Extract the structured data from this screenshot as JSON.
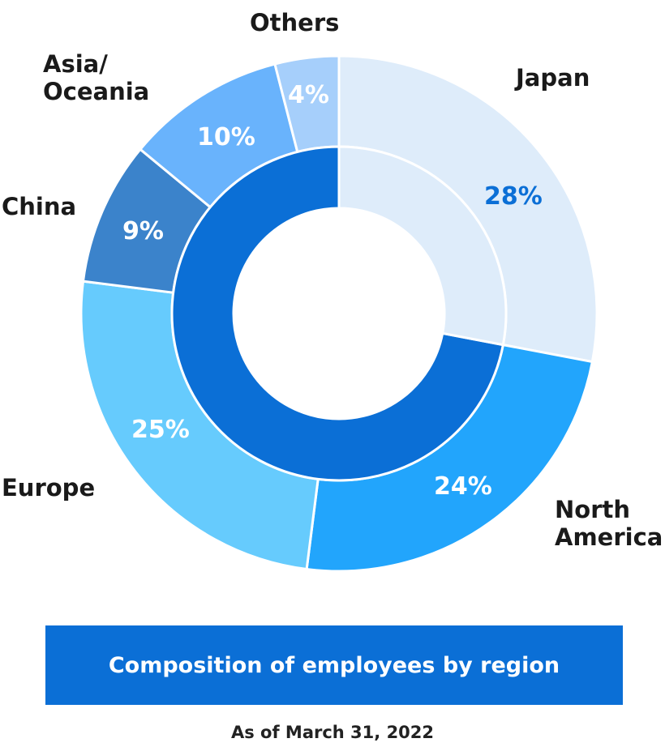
{
  "chart_data": {
    "type": "pie",
    "title": "Composition of employees by region",
    "subtitle": "As of March 31, 2022",
    "categories": [
      "Japan",
      "North America",
      "Europe",
      "China",
      "Asia/ Oceania",
      "Others"
    ],
    "values": [
      28,
      24,
      25,
      9,
      10,
      4
    ],
    "value_labels": [
      "28%",
      "24%",
      "25%",
      "9%",
      "10%",
      "4%"
    ],
    "colors": [
      "#deecfa",
      "#22a5fc",
      "#66cbfd",
      "#3b83cb",
      "#69b3fc",
      "#a6cffb"
    ],
    "label_colors": [
      "#0b6fd6",
      "#ffffff",
      "#ffffff",
      "#ffffff",
      "#ffffff",
      "#ffffff"
    ],
    "overseas": {
      "value": 72,
      "color": "#0b6fd6"
    }
  }
}
